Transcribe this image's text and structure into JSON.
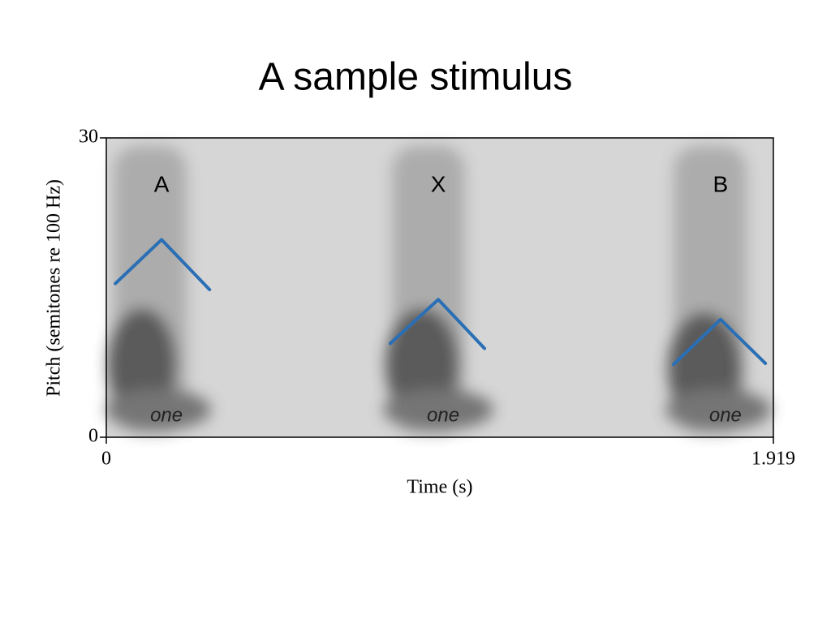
{
  "chart_data": {
    "type": "line",
    "title": "A sample stimulus",
    "x_label": "Time (s)",
    "y_label": "Pitch (semitones re 100 Hz)",
    "xlim": [
      0,
      1.919
    ],
    "ylim": [
      0,
      30
    ],
    "xticks": [
      0,
      1.919
    ],
    "yticks": [
      0,
      30
    ],
    "series": [
      {
        "name": "A",
        "color": "#2a6fb5",
        "x": [
          0.026,
          0.159,
          0.297
        ],
        "values": [
          15.4,
          19.8,
          14.8
        ]
      },
      {
        "name": "X",
        "color": "#2a6fb5",
        "x": [
          0.817,
          0.955,
          1.088
        ],
        "values": [
          9.4,
          13.8,
          8.9
        ]
      },
      {
        "name": "B",
        "color": "#2a6fb5",
        "x": [
          1.632,
          1.767,
          1.896
        ],
        "values": [
          7.3,
          11.8,
          7.4
        ]
      }
    ],
    "annotations": [
      "one",
      "one",
      "one"
    ]
  }
}
